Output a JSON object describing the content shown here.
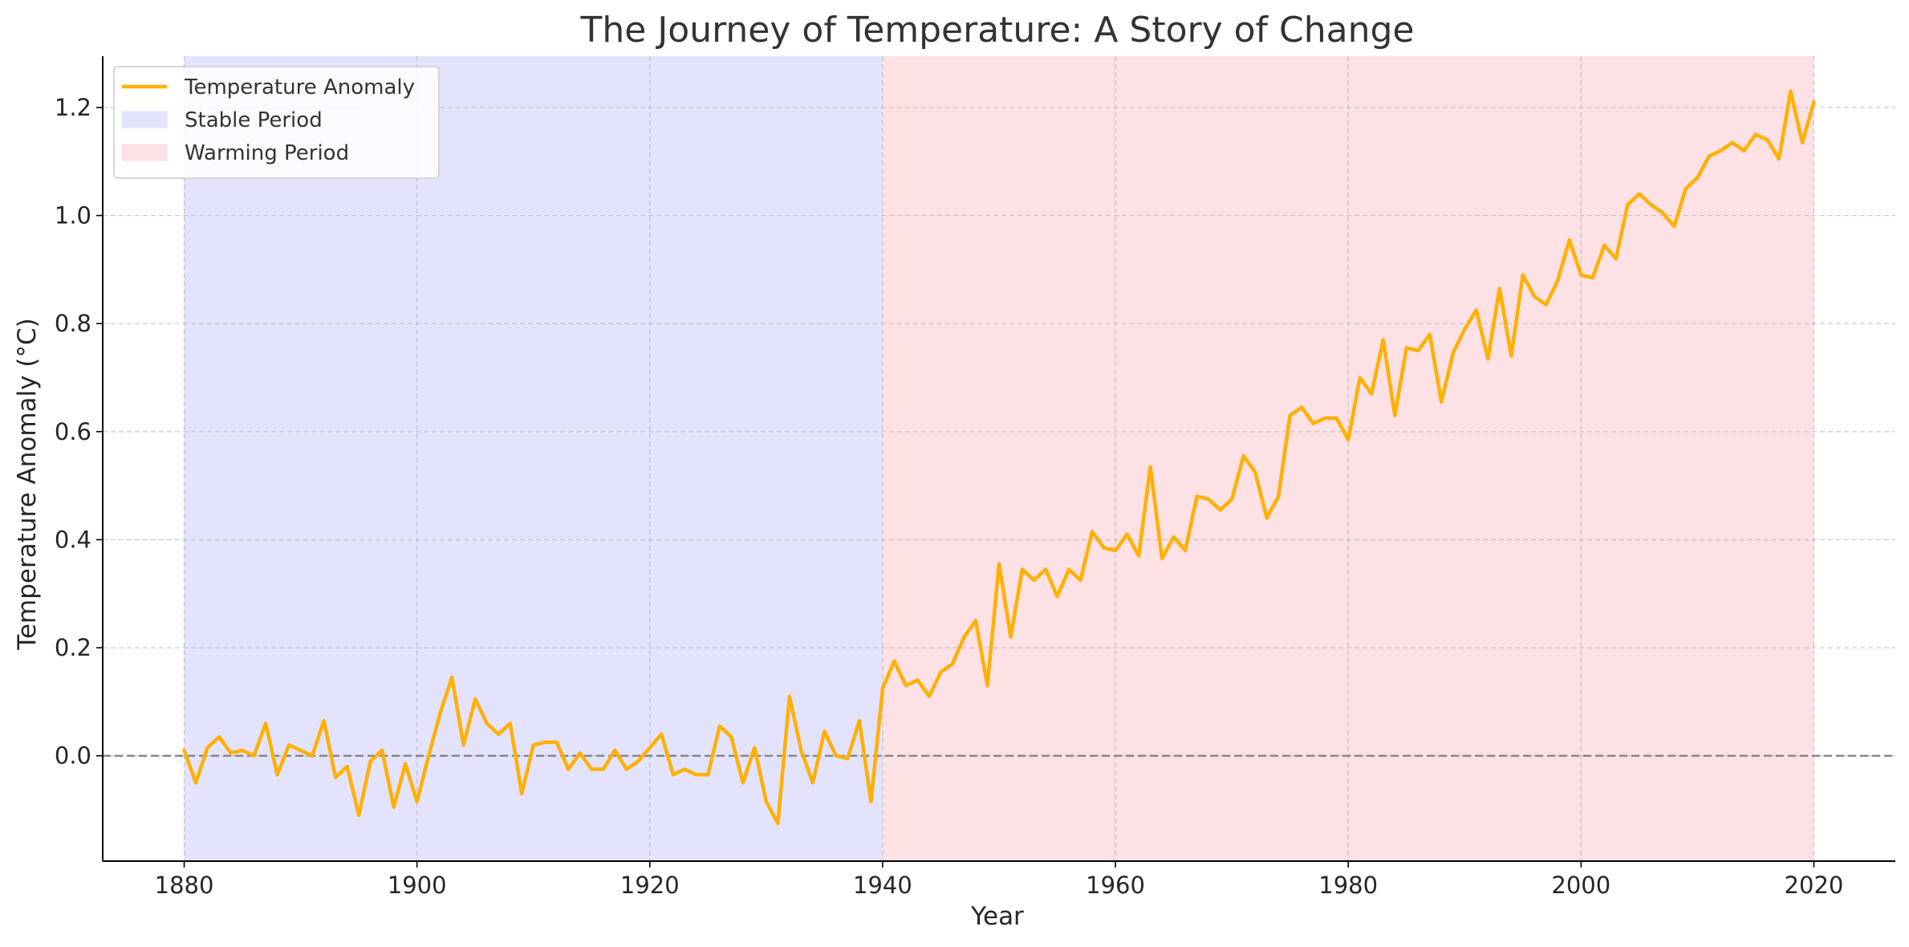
{
  "chart_data": {
    "type": "line",
    "title": "The Journey of Temperature: A Story of Change",
    "xlabel": "Year",
    "ylabel": "Temperature Anomaly (°C)",
    "xlim": [
      1873,
      2027
    ],
    "ylim": [
      -0.195,
      1.295
    ],
    "xticks": [
      1880,
      1900,
      1920,
      1940,
      1960,
      1980,
      2000,
      2020
    ],
    "yticks": [
      0.0,
      0.2,
      0.4,
      0.6,
      0.8,
      1.0,
      1.2
    ],
    "ytick_labels": [
      "0.0",
      "0.2",
      "0.4",
      "0.6",
      "0.8",
      "1.0",
      "1.2"
    ],
    "grid": true,
    "legend_position": "top-left",
    "reference_line": {
      "y": 0.0,
      "style": "dashed",
      "color": "#7f7f7f"
    },
    "regions": [
      {
        "name": "Stable Period",
        "x_start": 1880,
        "x_end": 1940,
        "color": "#e3e3fd"
      },
      {
        "name": "Warming Period",
        "x_start": 1940,
        "x_end": 2020,
        "color": "#fde1e4"
      }
    ],
    "series": [
      {
        "name": "Temperature Anomaly",
        "color": "#ffb000",
        "x": [
          1880,
          1881,
          1882,
          1883,
          1884,
          1885,
          1886,
          1887,
          1888,
          1889,
          1890,
          1891,
          1892,
          1893,
          1894,
          1895,
          1896,
          1897,
          1898,
          1899,
          1900,
          1901,
          1902,
          1903,
          1904,
          1905,
          1906,
          1907,
          1908,
          1909,
          1910,
          1911,
          1912,
          1913,
          1914,
          1915,
          1916,
          1917,
          1918,
          1919,
          1920,
          1921,
          1922,
          1923,
          1924,
          1925,
          1926,
          1927,
          1928,
          1929,
          1930,
          1931,
          1932,
          1933,
          1934,
          1935,
          1936,
          1937,
          1938,
          1939,
          1940,
          1941,
          1942,
          1943,
          1944,
          1945,
          1946,
          1947,
          1948,
          1949,
          1950,
          1951,
          1952,
          1953,
          1954,
          1955,
          1956,
          1957,
          1958,
          1959,
          1960,
          1961,
          1962,
          1963,
          1964,
          1965,
          1966,
          1967,
          1968,
          1969,
          1970,
          1971,
          1972,
          1973,
          1974,
          1975,
          1976,
          1977,
          1978,
          1979,
          1980,
          1981,
          1982,
          1983,
          1984,
          1985,
          1986,
          1987,
          1988,
          1989,
          1990,
          1991,
          1992,
          1993,
          1994,
          1995,
          1996,
          1997,
          1998,
          1999,
          2000,
          2001,
          2002,
          2003,
          2004,
          2005,
          2006,
          2007,
          2008,
          2009,
          2010,
          2011,
          2012,
          2013,
          2014,
          2015,
          2016,
          2017,
          2018,
          2019,
          2020
        ],
        "values": [
          0.01,
          -0.05,
          0.015,
          0.035,
          0.005,
          0.01,
          0.0,
          0.06,
          -0.035,
          0.02,
          0.01,
          0.0,
          0.065,
          -0.04,
          -0.02,
          -0.11,
          -0.01,
          0.01,
          -0.095,
          -0.015,
          -0.085,
          0.0,
          0.08,
          0.145,
          0.02,
          0.105,
          0.06,
          0.04,
          0.06,
          -0.07,
          0.02,
          0.025,
          0.025,
          -0.025,
          0.005,
          -0.025,
          -0.025,
          0.01,
          -0.025,
          -0.01,
          0.015,
          0.04,
          -0.035,
          -0.025,
          -0.035,
          -0.035,
          0.055,
          0.035,
          -0.05,
          0.015,
          -0.085,
          -0.125,
          0.11,
          0.01,
          -0.05,
          0.045,
          0.0,
          -0.005,
          0.065,
          -0.085,
          0.125,
          0.175,
          0.13,
          0.14,
          0.11,
          0.155,
          0.17,
          0.22,
          0.25,
          0.13,
          0.355,
          0.22,
          0.345,
          0.325,
          0.345,
          0.295,
          0.345,
          0.325,
          0.415,
          0.385,
          0.38,
          0.41,
          0.37,
          0.535,
          0.365,
          0.405,
          0.38,
          0.48,
          0.475,
          0.455,
          0.475,
          0.555,
          0.525,
          0.44,
          0.48,
          0.63,
          0.645,
          0.615,
          0.625,
          0.625,
          0.585,
          0.7,
          0.67,
          0.77,
          0.63,
          0.755,
          0.75,
          0.78,
          0.655,
          0.745,
          0.79,
          0.825,
          0.735,
          0.865,
          0.74,
          0.89,
          0.85,
          0.835,
          0.88,
          0.955,
          0.89,
          0.885,
          0.945,
          0.92,
          1.02,
          1.04,
          1.02,
          1.005,
          0.98,
          1.05,
          1.07,
          1.11,
          1.12,
          1.135,
          1.12,
          1.15,
          1.14,
          1.105,
          1.23,
          1.135,
          1.21
        ]
      }
    ]
  }
}
